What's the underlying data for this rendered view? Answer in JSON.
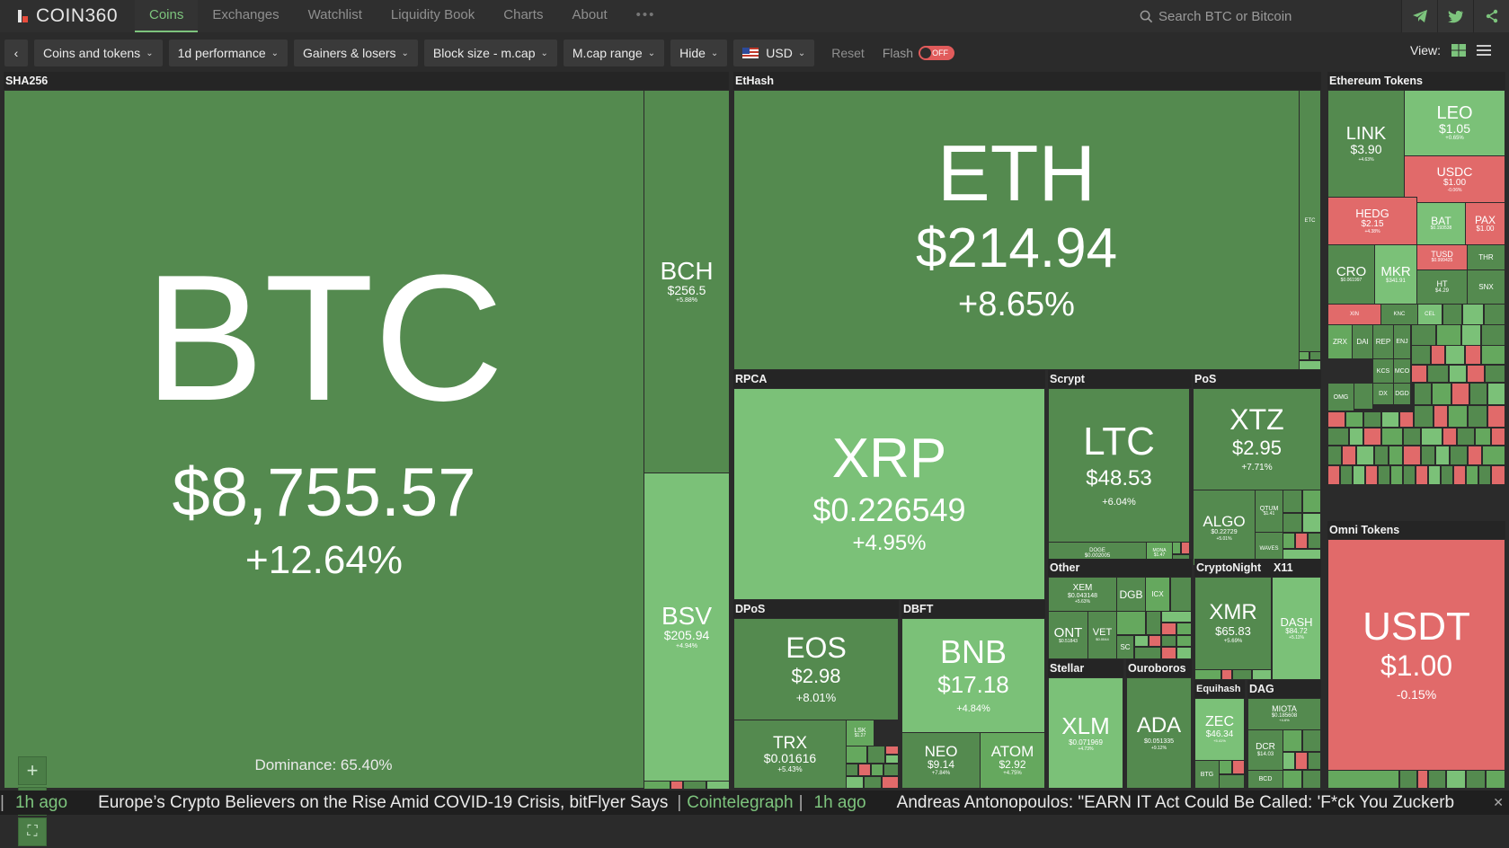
{
  "nav": {
    "logo": "COIN360",
    "tabs": [
      "Coins",
      "Exchanges",
      "Watchlist",
      "Liquidity Book",
      "Charts",
      "About"
    ],
    "more": "•••",
    "search_placeholder": "Search BTC or Bitcoin"
  },
  "toolbar": {
    "back": "‹",
    "filters": [
      "Coins and tokens",
      "1d performance",
      "Gainers & losers",
      "Block size - m.cap",
      "M.cap range",
      "Hide"
    ],
    "currency": "USD",
    "reset": "Reset",
    "flash_label": "Flash",
    "flash_state": "OFF",
    "view_label": "View:"
  },
  "groups": {
    "sha256": "SHA256",
    "ethash": "EtHash",
    "rpca": "RPCA",
    "scrypt": "Scrypt",
    "pos": "PoS",
    "dpos": "DPoS",
    "dbft": "DBFT",
    "other": "Other",
    "cryptonight": "CryptoNight",
    "x11": "X11",
    "stellar": "Stellar",
    "ouroboros": "Ouroboros",
    "equihash": "Equihash",
    "dag": "DAG",
    "eth_tokens": "Ethereum Tokens",
    "omni_tokens": "Omni Tokens"
  },
  "coins": {
    "btc": {
      "sym": "BTC",
      "price": "$8,755.57",
      "change": "+12.64%"
    },
    "bch": {
      "sym": "BCH",
      "price": "$256.5",
      "change": "+5.88%"
    },
    "bsv": {
      "sym": "BSV",
      "price": "$205.94",
      "change": "+4.94%"
    },
    "eth": {
      "sym": "ETH",
      "price": "$214.94",
      "change": "+8.65%"
    },
    "etc": {
      "sym": "ETC"
    },
    "xrp": {
      "sym": "XRP",
      "price": "$0.226549",
      "change": "+4.95%"
    },
    "ltc": {
      "sym": "LTC",
      "price": "$48.53",
      "change": "+6.04%"
    },
    "doge": {
      "sym": "DOGE",
      "price": "$0.002005",
      "change": "+4.86%"
    },
    "mona": {
      "sym": "MONA",
      "price": "$1.47"
    },
    "xtz": {
      "sym": "XTZ",
      "price": "$2.95",
      "change": "+7.71%"
    },
    "algo": {
      "sym": "ALGO",
      "price": "$0.22729",
      "change": "+5.01%"
    },
    "qtum": {
      "sym": "QTUM",
      "price": "$1.41"
    },
    "waves": {
      "sym": "WAVES"
    },
    "eos": {
      "sym": "EOS",
      "price": "$2.98",
      "change": "+8.01%"
    },
    "trx": {
      "sym": "TRX",
      "price": "$0.01616",
      "change": "+5.43%"
    },
    "lsk": {
      "sym": "LSK",
      "price": "$1.27"
    },
    "bnb": {
      "sym": "BNB",
      "price": "$17.18",
      "change": "+4.84%"
    },
    "neo": {
      "sym": "NEO",
      "price": "$9.14",
      "change": "+7.84%"
    },
    "atom": {
      "sym": "ATOM",
      "price": "$2.92",
      "change": "+4.75%"
    },
    "xem": {
      "sym": "XEM",
      "price": "$0.043148",
      "change": "+5.63%"
    },
    "dgb": {
      "sym": "DGB"
    },
    "icx": {
      "sym": "ICX"
    },
    "ont": {
      "sym": "ONT",
      "price": "$0.51843"
    },
    "vet": {
      "sym": "VET",
      "price": "$0.0044"
    },
    "sc": {
      "sym": "SC"
    },
    "xmr": {
      "sym": "XMR",
      "price": "$65.83",
      "change": "+5.69%"
    },
    "dash": {
      "sym": "DASH",
      "price": "$84.72",
      "change": "+5.11%"
    },
    "xlm": {
      "sym": "XLM",
      "price": "$0.071969",
      "change": "+4.73%"
    },
    "ada": {
      "sym": "ADA",
      "price": "$0.051335",
      "change": "+9.12%"
    },
    "zec": {
      "sym": "ZEC",
      "price": "$46.34",
      "change": "+5.41%"
    },
    "btg": {
      "sym": "BTG"
    },
    "miota": {
      "sym": "MIOTA",
      "price": "$0.185608",
      "change": "+4.6%"
    },
    "dcr": {
      "sym": "DCR",
      "price": "$14.03"
    },
    "bcd": {
      "sym": "BCD"
    },
    "link": {
      "sym": "LINK",
      "price": "$3.90",
      "change": "+4.63%"
    },
    "leo": {
      "sym": "LEO",
      "price": "$1.05",
      "change": "+0.65%"
    },
    "usdc": {
      "sym": "USDC",
      "price": "$1.00",
      "change": "-0.06%"
    },
    "hedg": {
      "sym": "HEDG",
      "price": "$2.15",
      "change": "+4.38%"
    },
    "bat": {
      "sym": "BAT",
      "price": "$0.193538"
    },
    "pax": {
      "sym": "PAX",
      "price": "$1.00"
    },
    "tusd": {
      "sym": "TUSD",
      "price": "$0.999425",
      "change": "-0.18%"
    },
    "thr": {
      "sym": "THR"
    },
    "cro": {
      "sym": "CRO",
      "price": "$0.061997"
    },
    "mkr": {
      "sym": "MKR",
      "price": "$341.91"
    },
    "ht": {
      "sym": "HT",
      "price": "$4.29"
    },
    "snx": {
      "sym": "SNX"
    },
    "xin": {
      "sym": "XIN"
    },
    "knc": {
      "sym": "KNC"
    },
    "cel": {
      "sym": "CEL"
    },
    "zrx": {
      "sym": "ZRX"
    },
    "dai": {
      "sym": "DAI"
    },
    "rep": {
      "sym": "REP"
    },
    "enj": {
      "sym": "ENJ"
    },
    "kcs": {
      "sym": "KCS"
    },
    "mco": {
      "sym": "MCO"
    },
    "omg": {
      "sym": "OMG"
    },
    "dx": {
      "sym": "DX"
    },
    "dgd": {
      "sym": "DGD"
    },
    "usdt": {
      "sym": "USDT",
      "price": "$1.00",
      "change": "-0.15%"
    }
  },
  "zoom": {
    "in": "+",
    "out": "—",
    "fit": "⛶"
  },
  "dominance": "Dominance: 65.40%",
  "news": [
    {
      "time": "1h ago",
      "headline": "Europe’s Crypto Believers on the Rise Amid COVID-19 Crisis, bitFlyer Says",
      "source": "Cointelegraph"
    },
    {
      "time": "1h ago",
      "headline": "Andreas Antonopoulos: \"EARN IT Act Could Be Called: 'F*ck You Zuckerb",
      "source": ""
    }
  ],
  "colors": {
    "green_dark": "#548a4f",
    "green_mid": "#65a85e",
    "green_light": "#7bc178",
    "red": "#e16a6a",
    "accent": "#7dc47d"
  },
  "icons": [
    "search-icon",
    "telegram-icon",
    "twitter-icon",
    "share-icon",
    "chevron-down-icon",
    "us-flag-icon",
    "grid-view-icon",
    "list-view-icon"
  ]
}
